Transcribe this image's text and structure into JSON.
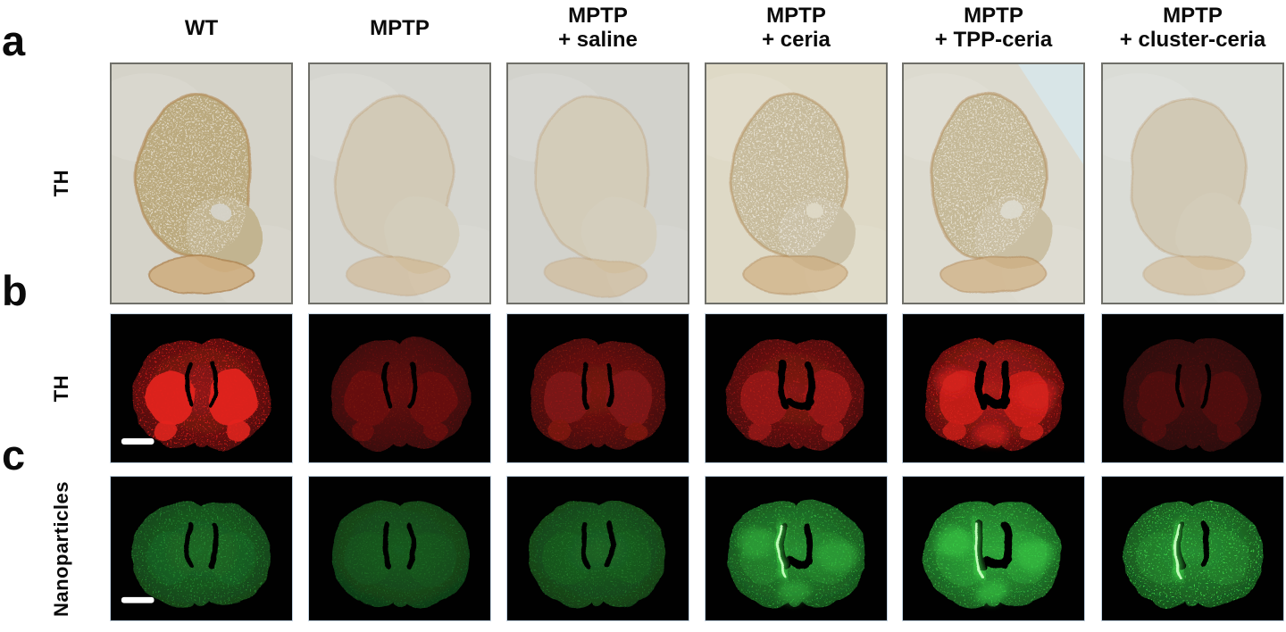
{
  "columns": [
    {
      "line1": "WT",
      "line2": ""
    },
    {
      "line1": "MPTP",
      "line2": ""
    },
    {
      "line1": "MPTP",
      "line2": "+ saline"
    },
    {
      "line1": "MPTP",
      "line2": "+ ceria"
    },
    {
      "line1": "MPTP",
      "line2": "+ TPP-ceria"
    },
    {
      "line1": "MPTP",
      "line2": "+ cluster-ceria"
    }
  ],
  "colors": {
    "red_stain": "#cc2222",
    "green_stain": "#3fd04f",
    "brightfield_tan": "#cdb98e",
    "scale_bar": "#ffffff",
    "panel_border_brightfield": "#6f6f69",
    "panel_border_fluorescence": "#c2d2e1"
  },
  "rows": [
    {
      "letter": "a",
      "label": "TH",
      "type": "brightfield",
      "panels": [
        {
          "condition": "WT",
          "background": "#d5d3c9",
          "signal": 0.85
        },
        {
          "condition": "MPTP",
          "background": "#d5d5cf",
          "signal": 0.18
        },
        {
          "condition": "MPTP + saline",
          "background": "#d2d2cc",
          "signal": 0.15
        },
        {
          "condition": "MPTP + ceria",
          "background": "#ded9c6",
          "signal": 0.5
        },
        {
          "condition": "MPTP + TPP-ceria",
          "background": "#dcdacf",
          "signal": 0.55
        },
        {
          "condition": "MPTP + cluster-ceria",
          "background": "#dadcd6",
          "signal": 0.2
        }
      ]
    },
    {
      "letter": "b",
      "label": "TH",
      "type": "fluorescence-red",
      "scale_bar": true,
      "panels": [
        {
          "condition": "WT",
          "base": 0.5,
          "bright": 1.0,
          "speckle": 0.85,
          "ventricles": 1.0,
          "patches": false,
          "streak": false
        },
        {
          "condition": "MPTP",
          "base": 0.3,
          "bright": 0.38,
          "speckle": 0.3,
          "ventricles": 1.2,
          "patches": false,
          "streak": false
        },
        {
          "condition": "MPTP + saline",
          "base": 0.4,
          "bright": 0.48,
          "speckle": 0.4,
          "ventricles": 1.1,
          "patches": false,
          "streak": false
        },
        {
          "condition": "MPTP + ceria",
          "base": 0.45,
          "bright": 0.6,
          "speckle": 0.5,
          "ventricles": 1.6,
          "patches": false,
          "streak": false
        },
        {
          "condition": "MPTP + TPP-ceria",
          "base": 0.6,
          "bright": 0.85,
          "speckle": 0.7,
          "ventricles": 1.9,
          "patches": true,
          "streak": false
        },
        {
          "condition": "MPTP + cluster-ceria",
          "base": 0.16,
          "bright": 0.26,
          "speckle": 0.25,
          "ventricles": 1.0,
          "patches": false,
          "streak": false
        }
      ]
    },
    {
      "letter": "c",
      "label": "Nanoparticles",
      "type": "fluorescence-green",
      "scale_bar": true,
      "panels": [
        {
          "condition": "WT",
          "base": 0.33,
          "speckle": 0.55,
          "ventricles": 1.2,
          "patches": false,
          "streak": false
        },
        {
          "condition": "MPTP",
          "base": 0.26,
          "speckle": 0.3,
          "ventricles": 1.3,
          "patches": false,
          "streak": false
        },
        {
          "condition": "MPTP + saline",
          "base": 0.3,
          "speckle": 0.4,
          "ventricles": 1.3,
          "patches": false,
          "streak": false
        },
        {
          "condition": "MPTP + ceria",
          "base": 0.5,
          "speckle": 0.55,
          "ventricles": 1.7,
          "patches": true,
          "streak": true
        },
        {
          "condition": "MPTP + TPP-ceria",
          "base": 0.62,
          "speckle": 0.65,
          "ventricles": 2.0,
          "patches": true,
          "streak": true
        },
        {
          "condition": "MPTP + cluster-ceria",
          "base": 0.5,
          "speckle": 0.9,
          "ventricles": 1.5,
          "patches": false,
          "streak": true
        }
      ]
    }
  ]
}
